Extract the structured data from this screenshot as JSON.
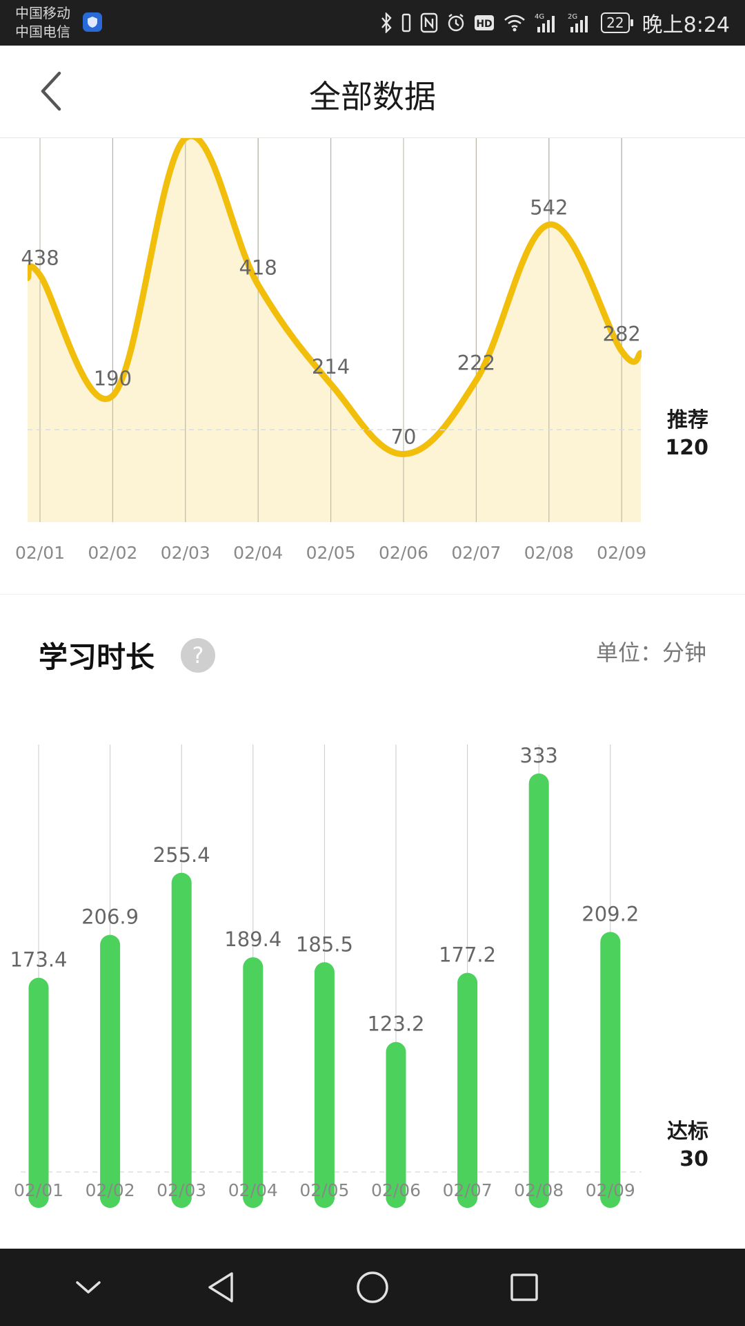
{
  "status_bar": {
    "carrier1": "中国移动",
    "carrier2": "中国电信",
    "signal1": "4G",
    "signal2": "2G",
    "hd": "HD",
    "battery": "22",
    "time": "晚上8:24"
  },
  "header": {
    "title": "全部数据"
  },
  "charts": [
    {
      "type": "area",
      "color": "#F2BE0C",
      "fill": "#FDF2CF",
      "categories": [
        "02/01",
        "02/02",
        "02/03",
        "02/04",
        "02/05",
        "02/06",
        "02/07",
        "02/08",
        "02/09"
      ],
      "values": [
        438,
        190,
        720,
        418,
        214,
        70,
        222,
        542,
        282
      ],
      "value_labels": [
        "438",
        "190",
        "",
        "418",
        "214",
        "70",
        "222",
        "542",
        "282"
      ],
      "reference": {
        "label": "推荐",
        "value": 120,
        "value_label": "120"
      },
      "ylim": [
        -70,
        720
      ]
    },
    {
      "type": "bar",
      "title": "学习时长",
      "help": "?",
      "unit": "单位：分钟",
      "color": "#4CD15C",
      "categories": [
        "02/01",
        "02/02",
        "02/03",
        "02/04",
        "02/05",
        "02/06",
        "02/07",
        "02/08",
        "02/09"
      ],
      "values": [
        173.4,
        206.9,
        255.4,
        189.4,
        185.5,
        123.2,
        177.2,
        333,
        209.2
      ],
      "value_labels": [
        "173.4",
        "206.9",
        "255.4",
        "189.4",
        "185.5",
        "123.2",
        "177.2",
        "333",
        "209.2"
      ],
      "reference": {
        "label": "达标",
        "value": 30,
        "value_label": "30"
      },
      "ylim": [
        0,
        333
      ]
    }
  ]
}
